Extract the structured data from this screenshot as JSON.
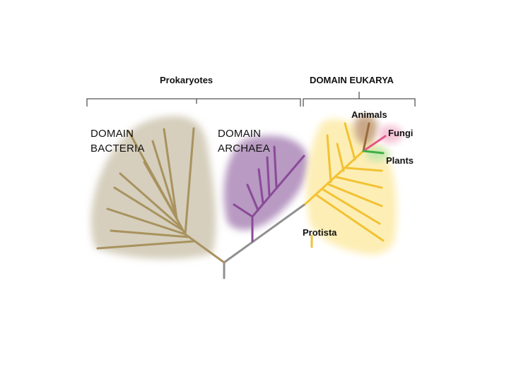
{
  "groups": {
    "prokaryotes": "Prokaryotes",
    "eukarya": "DOMAIN EUKARYA"
  },
  "domains": {
    "bacteria": {
      "line1": "DOMAIN",
      "line2": "BACTERIA"
    },
    "archaea": {
      "line1": "DOMAIN",
      "line2": "ARCHAEA"
    }
  },
  "kingdoms": {
    "animals": "Animals",
    "fungi": "Fungi",
    "plants": "Plants",
    "protista": "Protista"
  },
  "colors": {
    "bacteria_fill": "#d6cfbd",
    "bacteria_branch": "#a8925e",
    "archaea_fill": "#b89ac2",
    "archaea_branch": "#8a4a98",
    "eukarya_fill": "#fdeeb5",
    "eukarya_branch": "#f2c233",
    "animals_fill": "#c9a888",
    "animals_branch": "#9a6a3a",
    "fungi_fill": "#f5c4d6",
    "fungi_branch": "#e8558a",
    "plants_fill": "#c8e8b0",
    "plants_branch": "#3fae45",
    "trunk": "#909090",
    "bracket": "#555555"
  }
}
